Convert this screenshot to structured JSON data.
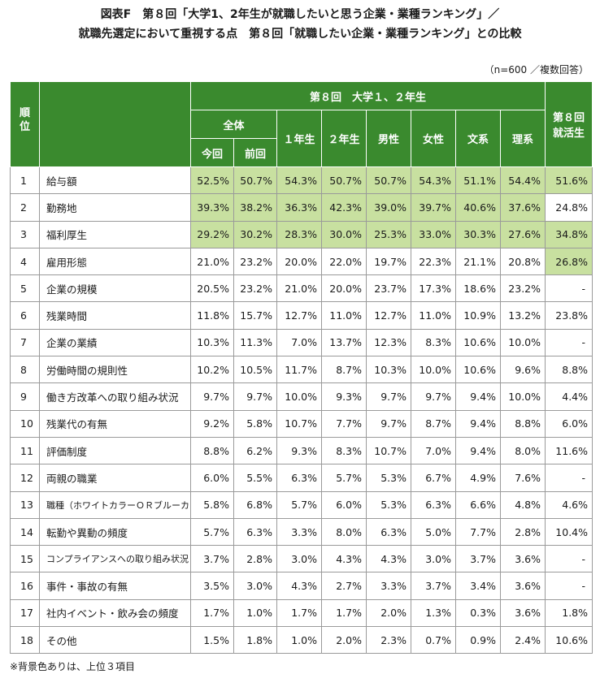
{
  "title": {
    "line1": "図表F　第８回「大学1、2年生が就職したいと思う企業・業種ランキング」／",
    "line2": "就職先選定において重視する点　第８回「就職したい企業・業種ランキング」との比較"
  },
  "note_top": "（n=600 ／複数回答）",
  "header": {
    "rank": "順位",
    "group": "第８回　大学１、２年生",
    "zentai": "全体",
    "konkai": "今回",
    "zenkai": "前回",
    "year1": "１年生",
    "year2": "２年生",
    "male": "男性",
    "female": "女性",
    "bunkei": "文系",
    "rikei": "理系",
    "shukatsu_l1": "第８回",
    "shukatsu_l2": "就活生"
  },
  "rows": [
    {
      "rank": "1",
      "item": "給与額",
      "values": [
        "52.5%",
        "50.7%",
        "54.3%",
        "50.7%",
        "50.7%",
        "54.3%",
        "51.1%",
        "54.4%",
        "51.6%"
      ]
    },
    {
      "rank": "2",
      "item": "勤務地",
      "values": [
        "39.3%",
        "38.2%",
        "36.3%",
        "42.3%",
        "39.0%",
        "39.7%",
        "40.6%",
        "37.6%",
        "24.8%"
      ]
    },
    {
      "rank": "3",
      "item": "福利厚生",
      "values": [
        "29.2%",
        "30.2%",
        "28.3%",
        "30.0%",
        "25.3%",
        "33.0%",
        "30.3%",
        "27.6%",
        "34.8%"
      ]
    },
    {
      "rank": "4",
      "item": "雇用形態",
      "values": [
        "21.0%",
        "23.2%",
        "20.0%",
        "22.0%",
        "19.7%",
        "22.3%",
        "21.1%",
        "20.8%",
        "26.8%"
      ]
    },
    {
      "rank": "5",
      "item": "企業の規模",
      "values": [
        "20.5%",
        "23.2%",
        "21.0%",
        "20.0%",
        "23.7%",
        "17.3%",
        "18.6%",
        "23.2%",
        "-"
      ]
    },
    {
      "rank": "6",
      "item": "残業時間",
      "values": [
        "11.8%",
        "15.7%",
        "12.7%",
        "11.0%",
        "12.7%",
        "11.0%",
        "10.9%",
        "13.2%",
        "23.8%"
      ]
    },
    {
      "rank": "7",
      "item": "企業の業績",
      "values": [
        "10.3%",
        "11.3%",
        "7.0%",
        "13.7%",
        "12.3%",
        "8.3%",
        "10.6%",
        "10.0%",
        "-"
      ]
    },
    {
      "rank": "8",
      "item": "労働時間の規則性",
      "values": [
        "10.2%",
        "10.5%",
        "11.7%",
        "8.7%",
        "10.3%",
        "10.0%",
        "10.6%",
        "9.6%",
        "8.8%"
      ]
    },
    {
      "rank": "9",
      "item": "働き方改革への取り組み状況",
      "values": [
        "9.7%",
        "9.7%",
        "10.0%",
        "9.3%",
        "9.7%",
        "9.7%",
        "9.4%",
        "10.0%",
        "4.4%"
      ]
    },
    {
      "rank": "10",
      "item": "残業代の有無",
      "values": [
        "9.2%",
        "5.8%",
        "10.7%",
        "7.7%",
        "9.7%",
        "8.7%",
        "9.4%",
        "8.8%",
        "6.0%"
      ]
    },
    {
      "rank": "11",
      "item": "評価制度",
      "values": [
        "8.8%",
        "6.2%",
        "9.3%",
        "8.3%",
        "10.7%",
        "7.0%",
        "9.4%",
        "8.0%",
        "11.6%"
      ]
    },
    {
      "rank": "12",
      "item": "両親の職業",
      "values": [
        "6.0%",
        "5.5%",
        "6.3%",
        "5.7%",
        "5.3%",
        "6.7%",
        "4.9%",
        "7.6%",
        "-"
      ]
    },
    {
      "rank": "13",
      "item": "職種（ホワイトカラーＯＲブルーカラー）",
      "values": [
        "5.8%",
        "6.8%",
        "5.7%",
        "6.0%",
        "5.3%",
        "6.3%",
        "6.6%",
        "4.8%",
        "4.6%"
      ]
    },
    {
      "rank": "14",
      "item": "転勤や異動の頻度",
      "values": [
        "5.7%",
        "6.3%",
        "3.3%",
        "8.0%",
        "6.3%",
        "5.0%",
        "7.7%",
        "2.8%",
        "10.4%"
      ]
    },
    {
      "rank": "15",
      "item": "コンプライアンスへの取り組み状況",
      "values": [
        "3.7%",
        "2.8%",
        "3.0%",
        "4.3%",
        "4.3%",
        "3.0%",
        "3.7%",
        "3.6%",
        "-"
      ]
    },
    {
      "rank": "16",
      "item": "事件・事故の有無",
      "values": [
        "3.5%",
        "3.0%",
        "4.3%",
        "2.7%",
        "3.3%",
        "3.7%",
        "3.4%",
        "3.6%",
        "-"
      ]
    },
    {
      "rank": "17",
      "item": "社内イベント・飲み会の頻度",
      "values": [
        "1.7%",
        "1.0%",
        "1.7%",
        "1.7%",
        "2.0%",
        "1.3%",
        "0.3%",
        "3.6%",
        "1.8%"
      ]
    },
    {
      "rank": "18",
      "item": "その他",
      "values": [
        "1.5%",
        "1.8%",
        "1.0%",
        "2.0%",
        "2.3%",
        "0.7%",
        "0.9%",
        "2.4%",
        "10.6%"
      ]
    }
  ],
  "highlight_color": "#c8e0a0",
  "header_color": "#3a8a2e",
  "footnote": "※背景色ありは、上位３項目"
}
